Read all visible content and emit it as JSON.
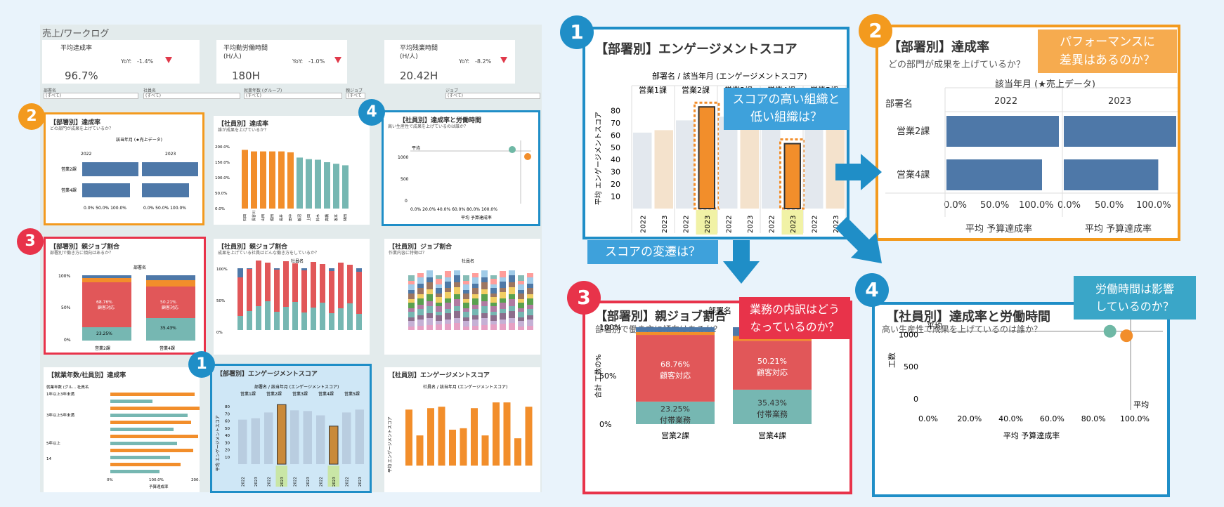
{
  "dashboard": {
    "title": "売上/ワークログ"
  },
  "kpis": [
    {
      "label": "平均達成率",
      "yoy_label": "YoY:",
      "yoy_value": "-1.4%",
      "value": "96.7%"
    },
    {
      "label": "平均勤労働時間\n(H/人)",
      "yoy_label": "YoY:",
      "yoy_value": "-1.0%",
      "value": "180H"
    },
    {
      "label": "平均残業時間\n(H/人)",
      "yoy_label": "YoY:",
      "yoy_value": "-8.2%",
      "value": "20.42H"
    }
  ],
  "filters": [
    {
      "label": "部署名",
      "value": "(すべて)"
    },
    {
      "label": "社員名",
      "value": "(すべて)"
    },
    {
      "label": "就業年数 (グループ)",
      "value": "(すべて)"
    },
    {
      "label": "親ジョブ",
      "value": "(すべて"
    },
    {
      "label": "ジョブ",
      "value": "(すべて)"
    }
  ],
  "badges": {
    "one": "1",
    "two": "2",
    "three": "3",
    "four": "4"
  },
  "panels": {
    "dept_rate": {
      "title": "【部署別】達成率",
      "subtitle": "どの部門が成果を上げているか？",
      "dim": "部署名",
      "period": "該当年月 (★売上データ)",
      "years": [
        "2022",
        "2023"
      ],
      "rows": [
        "営業2課",
        "営業4課"
      ],
      "ticks": [
        "0.0%",
        "50.0%",
        "100.0%",
        "0.0%",
        "50.0%",
        "100.0%"
      ],
      "measure": "平均 予算達成率",
      "measure2": "平均 予算達成率"
    },
    "emp_rate": {
      "title": "【社員別】達成率",
      "subtitle": "誰が成果を上げているか？",
      "yticks": [
        "200.0%",
        "150.0%",
        "100.0%",
        "50.0%",
        "0.0%"
      ],
      "names": [
        "石田",
        "長谷川",
        "山田",
        "堀田",
        "長井",
        "田中",
        "飯沼",
        "上田",
        "鈴木",
        "高橋",
        "坂本",
        "林田"
      ]
    },
    "emp_scatter": {
      "title": "【社員別】達成率と労働時間",
      "subtitle": "高い生産性で成果を上げているのは誰か？",
      "avg": "平均",
      "xticks": [
        "0.0%",
        "20.0%",
        "40.0%",
        "60.0%",
        "80.0%",
        "100.0%"
      ],
      "yticks": [
        "1000",
        "500",
        "0"
      ],
      "ylabel": "工数",
      "xlabel": "平均 予算達成率"
    },
    "dept_parent": {
      "title": "【部署別】親ジョブ割合",
      "subtitle": "部署別で働き方に傾向はあるか？",
      "dim": "部署名",
      "yticks": [
        "100%",
        "50%",
        "0%"
      ],
      "ylabel": "合計 工数の%",
      "cats": [
        "営業2課",
        "営業4課"
      ],
      "red": [
        "68.76%",
        "50.21%"
      ],
      "red_label": "顧客対応",
      "green": [
        "23.25%",
        "35.43%"
      ],
      "green_label": "付帯業務"
    },
    "emp_parent": {
      "title": "【社員別】親ジョブ割合",
      "subtitle": "成果を上げている社員はどんな働き方をしているか？",
      "dim": "社員名",
      "yticks": [
        "100%",
        "50%",
        "0%"
      ],
      "ylabel": "合計 工数の%"
    },
    "emp_job": {
      "title": "【社員別】ジョブ割合",
      "subtitle": "作業内容に特徴は？",
      "dim": "社員名"
    },
    "tenure": {
      "title": "【就業年数/社員別】達成率",
      "header": "就業年数 (グル... 社員名",
      "groups": [
        "1年以上3年未満",
        "3年以上5年未満",
        "5年以上",
        "14"
      ],
      "xticks": [
        "0%",
        "100.0%",
        "200.0%"
      ],
      "xlabel": "予算達成率"
    },
    "dept_eng": {
      "title": "【部署別】エンゲージメントスコア",
      "header": "部署名 / 該当年月 (エンゲージメントスコア)",
      "depts": [
        "営業1課",
        "営業2課",
        "営業3課",
        "営業4課",
        "営業5課"
      ],
      "yticks": [
        "80",
        "70",
        "60",
        "50",
        "40",
        "30",
        "20",
        "10"
      ],
      "ylabel": "平均 エンゲージメントスコア",
      "years": [
        "2022",
        "2023"
      ]
    },
    "emp_eng": {
      "title": "【社員別】エンゲージメントスコア",
      "header": "社員名 / 該当年月 (エンゲージメントスコア)",
      "ylabel": "平均 エンゲージメントスコア"
    }
  },
  "callouts": {
    "perf": "パフォーマンスに\n差異はあるのか？",
    "score": "スコアの高い組織と\n低い組織は？",
    "change": "スコアの変遷は？",
    "breakdown": "業務の内訳はどう\nなっているのか？",
    "hours": "労働時間は影響\nしているのか？"
  },
  "chart_data": [
    {
      "type": "bar",
      "title": "【部署別】エンゲージメントスコア",
      "categories": [
        "営業1課 2022",
        "営業1課 2023",
        "営業2課 2022",
        "営業2課 2023",
        "営業3課 2022",
        "営業3課 2023",
        "営業4課 2022",
        "営業4課 2023",
        "営業5課 2022",
        "営業5課 2023"
      ],
      "values": [
        62,
        64,
        72,
        83,
        75,
        74,
        68,
        53,
        72,
        76
      ],
      "ylim": [
        0,
        90
      ],
      "highlighted": [
        "営業2課 2023",
        "営業4課 2023"
      ],
      "ylabel": "平均 エンゲージメントスコア"
    },
    {
      "type": "bar",
      "title": "【部署別】達成率",
      "categories": [
        "営業2課",
        "営業4課"
      ],
      "series": [
        {
          "name": "2022",
          "values": [
            100,
            85
          ]
        },
        {
          "name": "2023",
          "values": [
            100,
            84
          ]
        }
      ],
      "xlim": [
        0,
        100
      ],
      "xlabel": "平均 予算達成率"
    },
    {
      "type": "bar",
      "title": "【部署別】親ジョブ割合",
      "categories": [
        "営業2課",
        "営業4課"
      ],
      "series": [
        {
          "name": "付帯業務",
          "values": [
            23.25,
            35.43
          ]
        },
        {
          "name": "顧客対応",
          "values": [
            68.76,
            50.21
          ]
        },
        {
          "values": [
            3,
            5
          ]
        },
        {
          "values": [
            5,
            9
          ]
        }
      ],
      "ylim": [
        0,
        100
      ],
      "ylabel": "合計 工数の%"
    },
    {
      "type": "scatter",
      "title": "【社員別】達成率と労働時間",
      "x": [
        88,
        96
      ],
      "y": [
        1050,
        980
      ],
      "xlim": [
        0,
        100
      ],
      "ylim": [
        0,
        1200
      ],
      "xlabel": "平均 予算達成率",
      "ylabel": "工数"
    }
  ]
}
